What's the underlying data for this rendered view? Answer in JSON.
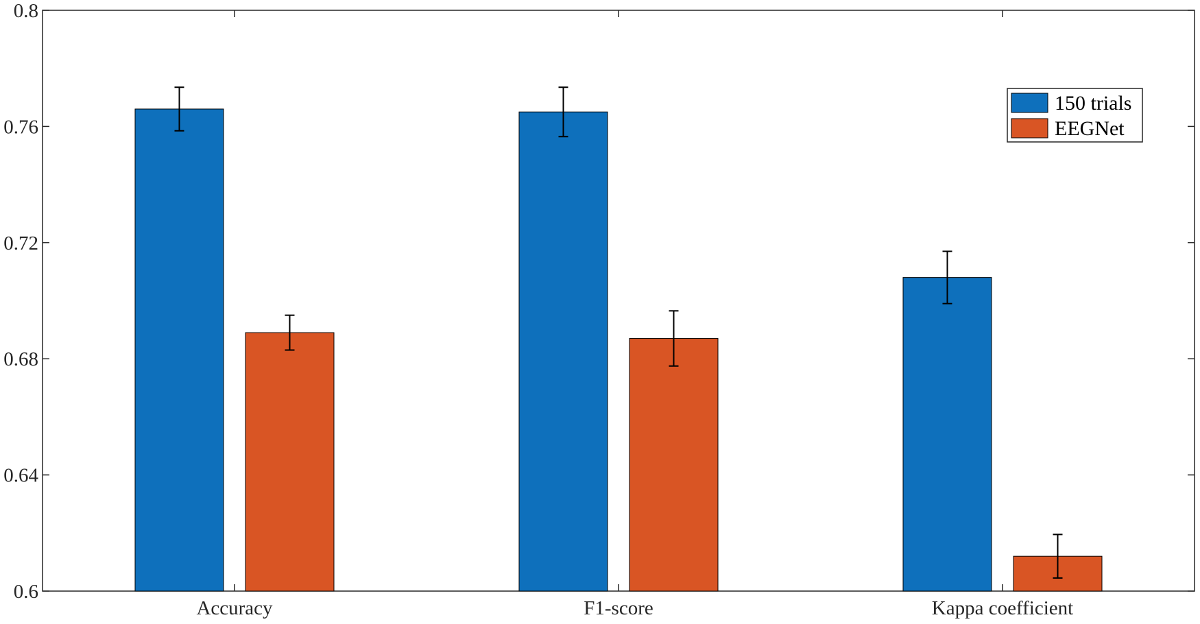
{
  "chart_data": {
    "type": "bar",
    "categories": [
      "Accuracy",
      "F1-score",
      "Kappa coefficient"
    ],
    "series": [
      {
        "name": "150 trials",
        "color": "#0E70BC",
        "values": [
          0.766,
          0.765,
          0.708
        ],
        "error": [
          0.0075,
          0.0085,
          0.009
        ]
      },
      {
        "name": "EEGNet",
        "color": "#D95524",
        "values": [
          0.689,
          0.687,
          0.612
        ],
        "error": [
          0.006,
          0.0095,
          0.0075
        ]
      }
    ],
    "ylim": [
      0.6,
      0.8
    ],
    "yticks": [
      "0.6",
      "0.64",
      "0.68",
      "0.72",
      "0.76",
      "0.8"
    ],
    "xlabel": "",
    "ylabel": "",
    "grid": false,
    "legend_position": "top-right"
  }
}
